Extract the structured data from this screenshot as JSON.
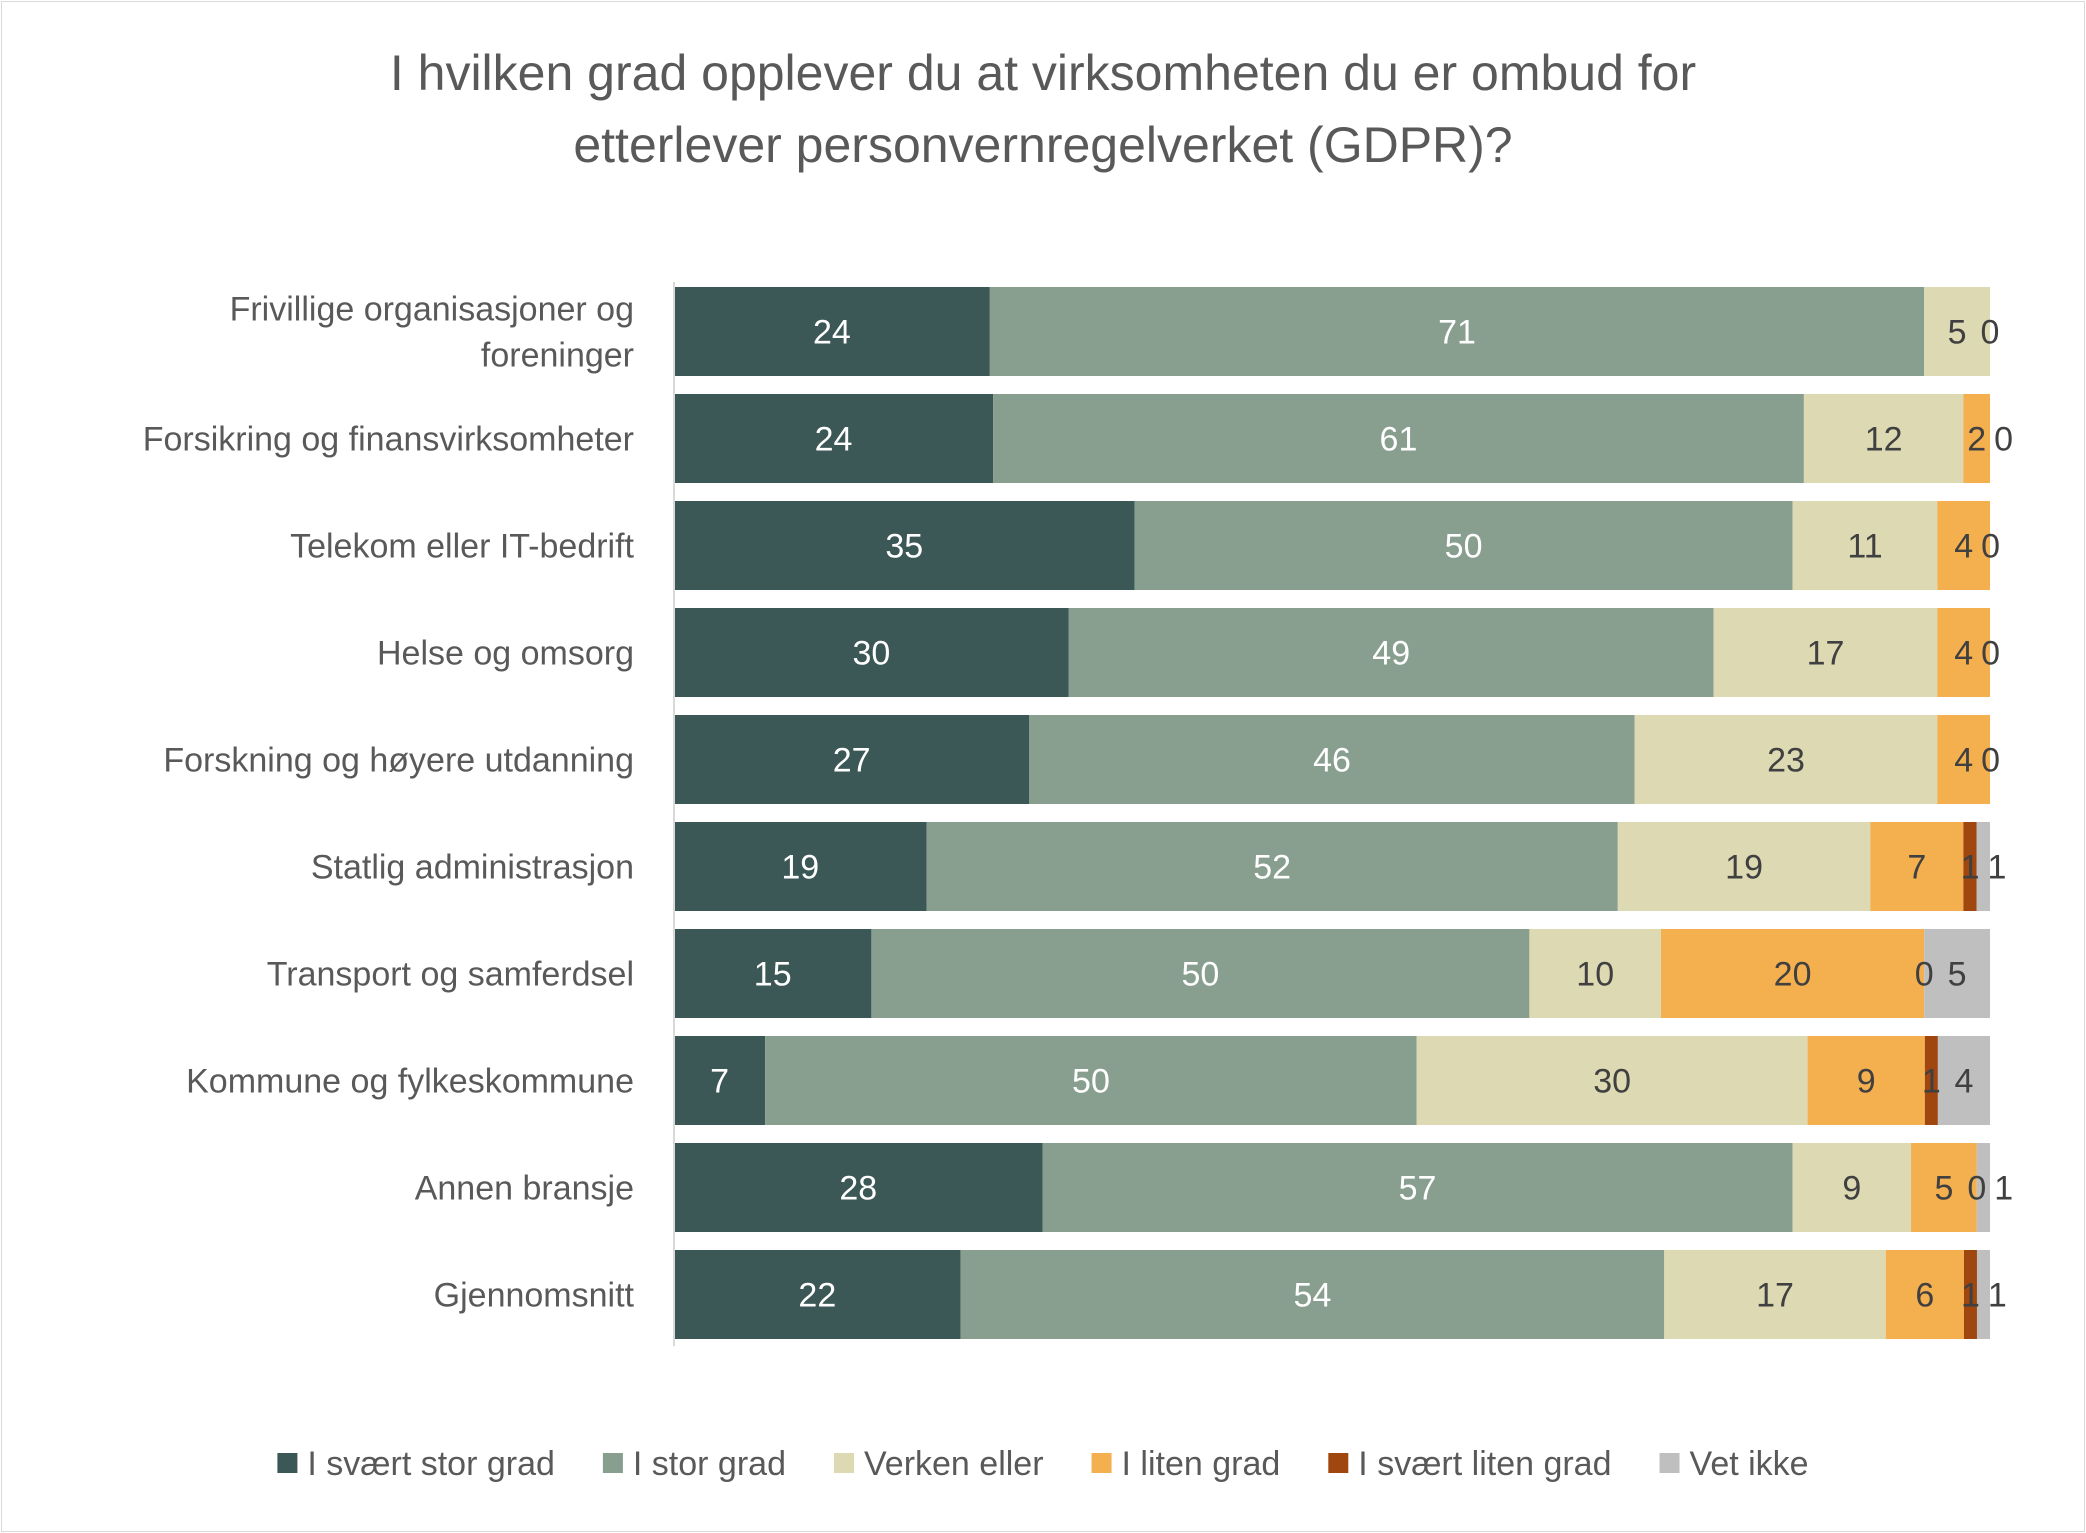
{
  "chart_data": {
    "type": "bar",
    "orientation": "horizontal",
    "stacked": "100%",
    "title": [
      "I hvilken grad opplever du at virksomheten du er ombud for",
      "etterlever personvernregelverket (GDPR)?"
    ],
    "categories": [
      "Frivillige organisasjoner og foreninger",
      "Forsikring og finansvirksomheter",
      "Telekom eller IT-bedrift",
      "Helse og omsorg",
      "Forskning og høyere utdanning",
      "Statlig administrasjon",
      "Transport og samferdsel",
      "Kommune og fylkeskommune",
      "Annen bransje",
      "Gjennomsnitt"
    ],
    "category_label_lines": [
      [
        "Frivillige organisasjoner og",
        "foreninger"
      ],
      [
        "Forsikring og finansvirksomheter"
      ],
      [
        "Telekom eller IT-bedrift"
      ],
      [
        "Helse og omsorg"
      ],
      [
        "Forskning og høyere utdanning"
      ],
      [
        "Statlig administrasjon"
      ],
      [
        "Transport og samferdsel"
      ],
      [
        "Kommune og fylkeskommune"
      ],
      [
        "Annen bransje"
      ],
      [
        "Gjennomsnitt"
      ]
    ],
    "series": [
      {
        "name": "I svært stor grad",
        "color": "#3B5856",
        "label_color": "#FFFFFF",
        "values": [
          24,
          24,
          35,
          30,
          27,
          19,
          15,
          7,
          28,
          22
        ]
      },
      {
        "name": "I stor grad",
        "color": "#889F90",
        "label_color": "#FFFFFF",
        "values": [
          71,
          61,
          50,
          49,
          46,
          52,
          50,
          50,
          57,
          54
        ]
      },
      {
        "name": "Verken eller",
        "color": "#DDD9B3",
        "label_color": "#404040",
        "values": [
          5,
          12,
          11,
          17,
          23,
          19,
          10,
          30,
          9,
          17
        ]
      },
      {
        "name": "I liten grad",
        "color": "#F4B04F",
        "label_color": "#404040",
        "values": [
          null,
          2,
          4,
          4,
          4,
          7,
          20,
          9,
          5,
          6
        ]
      },
      {
        "name": "I svært liten grad",
        "color": "#A0460F",
        "label_color": "#FFFFFF",
        "values": [
          null,
          null,
          null,
          null,
          null,
          1,
          0,
          1,
          0,
          1
        ]
      },
      {
        "name": "Vet ikke",
        "color": "#BFBFBF",
        "label_color": "#404040",
        "values": [
          0,
          0,
          0,
          0,
          0,
          1,
          5,
          4,
          1,
          1
        ]
      }
    ],
    "legend_position": "bottom",
    "grid": false
  }
}
